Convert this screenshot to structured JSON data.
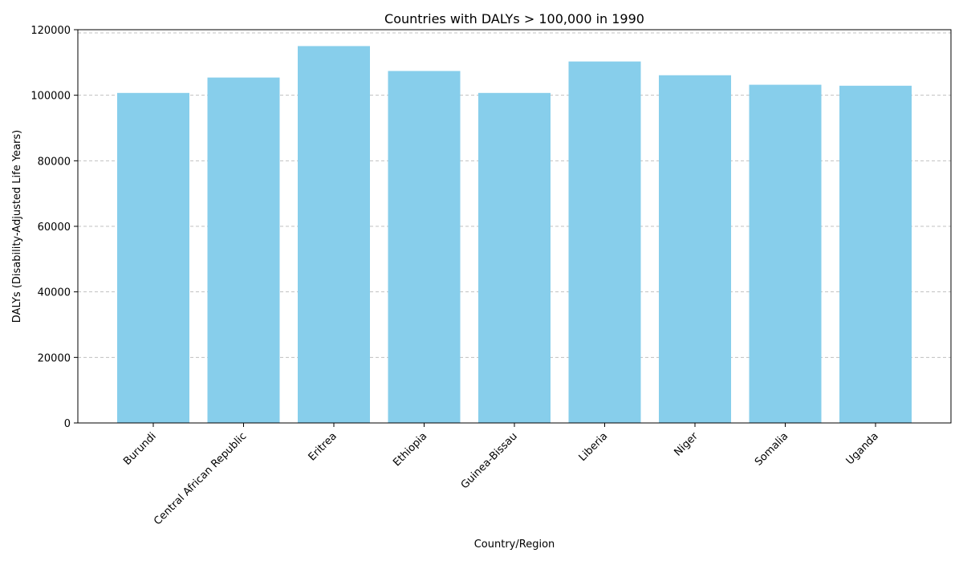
{
  "chart_data": {
    "type": "bar",
    "title": "Countries with DALYs > 100,000 in 1990",
    "xlabel": "Country/Region",
    "ylabel": "DALYs (Disability-Adjusted Life Years)",
    "categories": [
      "Burundi",
      "Central African Republic",
      "Eritrea",
      "Ethiopia",
      "Guinea-Bissau",
      "Liberia",
      "Niger",
      "Somalia",
      "Uganda"
    ],
    "values": [
      100700,
      105400,
      115000,
      107400,
      100700,
      110300,
      106100,
      103200,
      102900
    ],
    "ylim": [
      0,
      120000
    ],
    "yticks": [
      0,
      20000,
      40000,
      60000,
      80000,
      100000,
      120000
    ],
    "ytick_labels": [
      "0",
      "20000",
      "40000",
      "60000",
      "80000",
      "100000",
      "120000"
    ],
    "grid": "y-dashed",
    "legend": "none",
    "colors": {
      "bar": "#87CEEB",
      "grid": "#c0c0c0",
      "axis": "#000000"
    }
  }
}
